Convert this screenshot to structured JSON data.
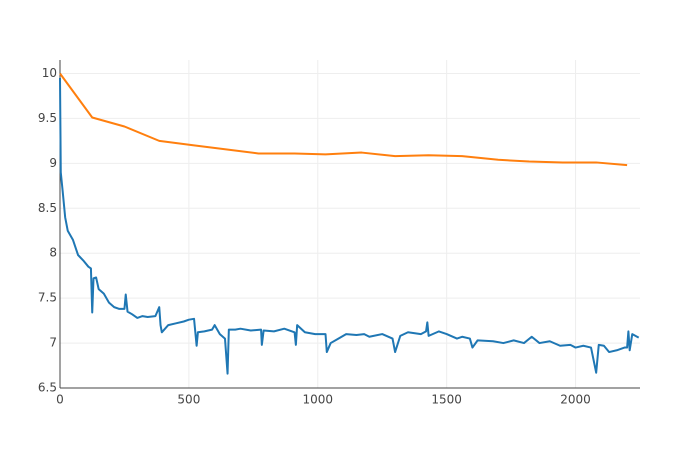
{
  "chart_data": {
    "type": "line",
    "grid": true,
    "xlim": [
      0,
      2250
    ],
    "xticks": [
      0,
      500,
      1000,
      1500,
      2000
    ],
    "ylim": [
      6.5,
      10.15
    ],
    "yticks": [
      6.5,
      7,
      7.5,
      8,
      8.5,
      9,
      9.5,
      10
    ],
    "series": [
      {
        "color": "#1f77b4",
        "x": [
          0,
          3,
          10,
          20,
          30,
          50,
          70,
          90,
          110,
          120,
          125,
          130,
          140,
          150,
          170,
          190,
          210,
          230,
          250,
          255,
          262,
          280,
          300,
          320,
          340,
          370,
          385,
          390,
          395,
          420,
          450,
          480,
          500,
          520,
          530,
          535,
          560,
          590,
          600,
          620,
          640,
          650,
          655,
          680,
          700,
          740,
          780,
          783,
          790,
          830,
          870,
          910,
          915,
          920,
          950,
          990,
          1030,
          1035,
          1050,
          1080,
          1110,
          1150,
          1180,
          1200,
          1250,
          1290,
          1300,
          1320,
          1350,
          1400,
          1420,
          1425,
          1430,
          1470,
          1500,
          1540,
          1560,
          1590,
          1600,
          1620,
          1680,
          1720,
          1760,
          1800,
          1830,
          1860,
          1900,
          1940,
          1980,
          2000,
          2030,
          2060,
          2080,
          2090,
          2110,
          2130,
          2160,
          2190,
          2200,
          2205,
          2210,
          2220,
          2245
        ],
        "values": [
          9.95,
          8.9,
          8.7,
          8.4,
          8.25,
          8.15,
          7.98,
          7.92,
          7.85,
          7.83,
          7.34,
          7.72,
          7.73,
          7.6,
          7.55,
          7.45,
          7.4,
          7.38,
          7.38,
          7.54,
          7.35,
          7.32,
          7.28,
          7.3,
          7.29,
          7.3,
          7.4,
          7.2,
          7.12,
          7.2,
          7.22,
          7.24,
          7.26,
          7.27,
          6.97,
          7.12,
          7.13,
          7.15,
          7.2,
          7.1,
          7.05,
          6.66,
          7.15,
          7.15,
          7.16,
          7.14,
          7.15,
          6.98,
          7.14,
          7.13,
          7.16,
          7.12,
          6.98,
          7.2,
          7.12,
          7.1,
          7.1,
          6.9,
          7.0,
          7.05,
          7.1,
          7.09,
          7.1,
          7.07,
          7.1,
          7.05,
          6.9,
          7.08,
          7.12,
          7.1,
          7.13,
          7.23,
          7.08,
          7.13,
          7.1,
          7.05,
          7.07,
          7.05,
          6.95,
          7.03,
          7.02,
          7.0,
          7.03,
          7.0,
          7.07,
          7.0,
          7.02,
          6.97,
          6.98,
          6.95,
          6.97,
          6.95,
          6.67,
          6.98,
          6.97,
          6.9,
          6.92,
          6.95,
          6.95,
          7.13,
          6.92,
          7.1,
          7.06
        ]
      },
      {
        "color": "#ff7f0e",
        "x": [
          0,
          125,
          250,
          385,
          520,
          770,
          910,
          1030,
          1170,
          1300,
          1430,
          1560,
          1700,
          1820,
          1950,
          2080,
          2200
        ],
        "values": [
          10,
          9.51,
          9.41,
          9.25,
          9.2,
          9.11,
          9.11,
          9.1,
          9.12,
          9.08,
          9.09,
          9.08,
          9.04,
          9.02,
          9.01,
          9.01,
          8.98
        ]
      }
    ]
  }
}
